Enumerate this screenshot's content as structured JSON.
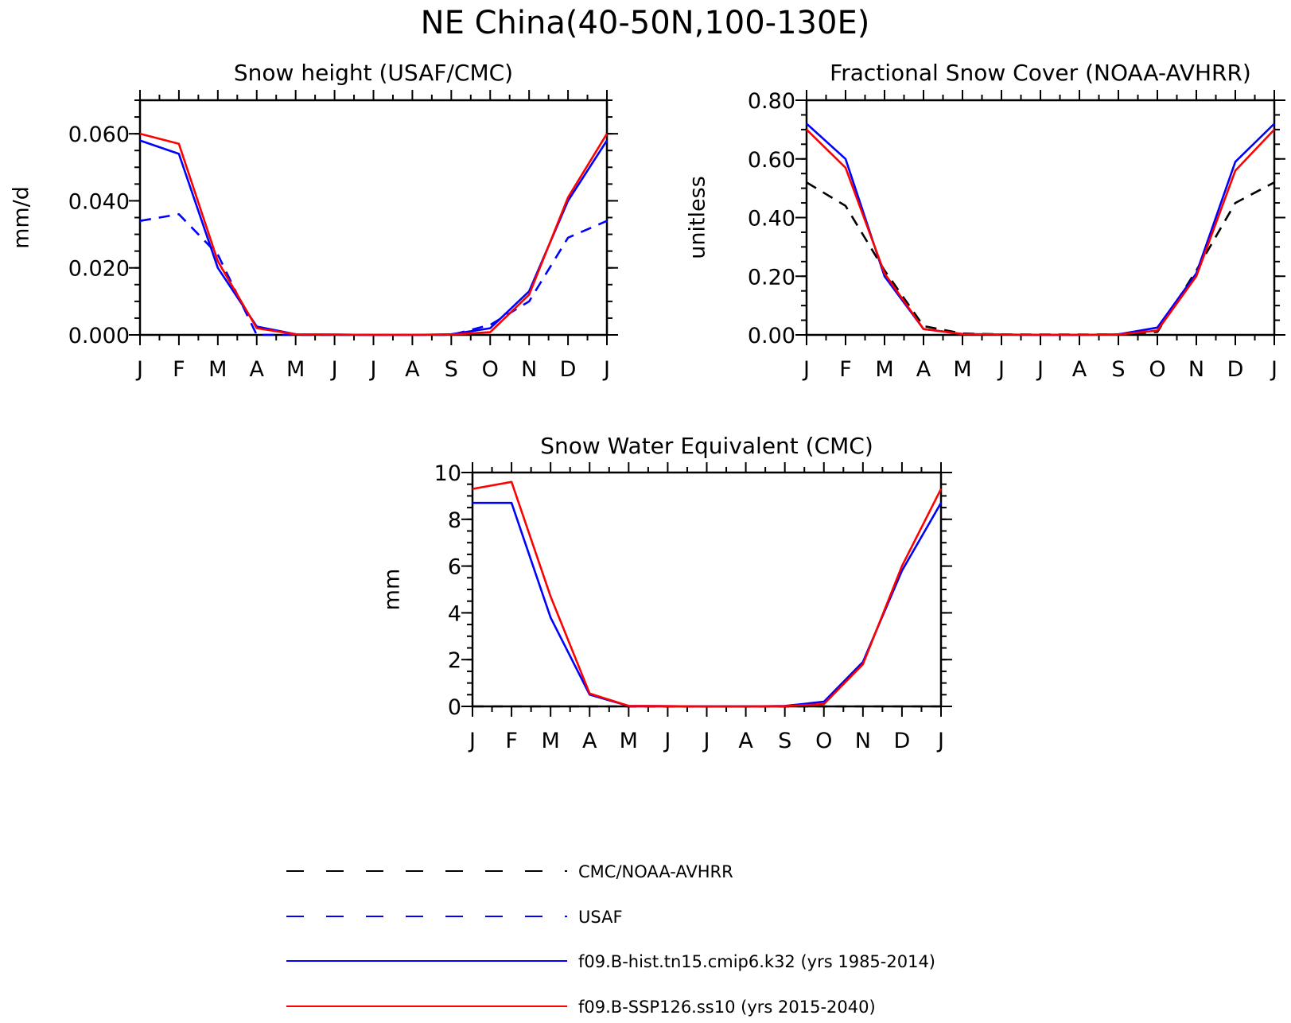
{
  "title": "NE China(40-50N,100-130E)",
  "legend": [
    {
      "label": "CMC/NOAA-AVHRR",
      "color": "#000000",
      "dash": true
    },
    {
      "label": "USAF",
      "color": "#0000ff",
      "dash": true
    },
    {
      "label": "f09.B-hist.tn15.cmip6.k32 (yrs 1985-2014)",
      "color": "#0000ff",
      "dash": false
    },
    {
      "label": "f09.B-SSP126.ss10 (yrs 2015-2040)",
      "color": "#ff0000",
      "dash": false
    }
  ],
  "chart_data": [
    {
      "type": "line",
      "title": "Snow height (USAF/CMC)",
      "xlabel": "",
      "ylabel": "mm/d",
      "categories": [
        "J",
        "F",
        "M",
        "A",
        "M",
        "J",
        "J",
        "A",
        "S",
        "O",
        "N",
        "D",
        "J"
      ],
      "ylim": [
        0,
        0.07
      ],
      "yticks": [
        0.0,
        0.02,
        0.04,
        0.06
      ],
      "ytick_labels": [
        "0.000",
        "0.020",
        "0.040",
        "0.060"
      ],
      "series": [
        {
          "name": "USAF",
          "color": "#0000ff",
          "dash": true,
          "values": [
            0.034,
            0.036,
            0.024,
            0.0,
            0.0,
            0.0,
            0.0,
            0.0,
            0.0,
            0.003,
            0.01,
            0.029,
            0.034
          ]
        },
        {
          "name": "f09.B-hist.tn15.cmip6.k32 (yrs 1985-2014)",
          "color": "#0000ff",
          "dash": false,
          "values": [
            0.058,
            0.054,
            0.02,
            0.0025,
            0.0002,
            0.0001,
            0.0,
            0.0,
            0.0002,
            0.002,
            0.013,
            0.04,
            0.058
          ]
        },
        {
          "name": "f09.B-SSP126.ss10 (yrs 2015-2040)",
          "color": "#ff0000",
          "dash": false,
          "values": [
            0.06,
            0.057,
            0.022,
            0.002,
            0.0002,
            0.0001,
            0.0,
            0.0,
            0.0001,
            0.0008,
            0.012,
            0.041,
            0.06
          ]
        }
      ]
    },
    {
      "type": "line",
      "title": "Fractional Snow Cover (NOAA-AVHRR)",
      "xlabel": "",
      "ylabel": "unitless",
      "categories": [
        "J",
        "F",
        "M",
        "A",
        "M",
        "J",
        "J",
        "A",
        "S",
        "O",
        "N",
        "D",
        "J"
      ],
      "ylim": [
        0,
        0.8
      ],
      "yticks": [
        0.0,
        0.2,
        0.4,
        0.6,
        0.8
      ],
      "ytick_labels": [
        "0.00",
        "0.20",
        "0.40",
        "0.60",
        "0.80"
      ],
      "series": [
        {
          "name": "CMC/NOAA-AVHRR",
          "color": "#000000",
          "dash": true,
          "values": [
            0.52,
            0.44,
            0.22,
            0.03,
            0.005,
            0.002,
            0.001,
            0.001,
            0.002,
            0.01,
            0.22,
            0.45,
            0.52
          ]
        },
        {
          "name": "f09.B-hist.tn15.cmip6.k32 (yrs 1985-2014)",
          "color": "#0000ff",
          "dash": false,
          "values": [
            0.72,
            0.6,
            0.2,
            0.02,
            0.003,
            0.001,
            0.0,
            0.0,
            0.002,
            0.025,
            0.21,
            0.59,
            0.72
          ]
        },
        {
          "name": "f09.B-SSP126.ss10 (yrs 2015-2040)",
          "color": "#ff0000",
          "dash": false,
          "values": [
            0.7,
            0.57,
            0.21,
            0.02,
            0.003,
            0.001,
            0.0,
            0.0,
            0.001,
            0.015,
            0.2,
            0.56,
            0.7
          ]
        }
      ]
    },
    {
      "type": "line",
      "title": "Snow Water Equivalent (CMC)",
      "xlabel": "",
      "ylabel": "mm",
      "categories": [
        "J",
        "F",
        "M",
        "A",
        "M",
        "J",
        "J",
        "A",
        "S",
        "O",
        "N",
        "D",
        "J"
      ],
      "ylim": [
        0,
        10
      ],
      "yticks": [
        0,
        2,
        4,
        6,
        8,
        10
      ],
      "ytick_labels": [
        "0",
        "2",
        "4",
        "6",
        "8",
        "10"
      ],
      "series": [
        {
          "name": "CMC/NOAA-AVHRR",
          "color": "#000000",
          "dash": true,
          "values": [
            0,
            0,
            0,
            0,
            0,
            0,
            0,
            0,
            0,
            0,
            0,
            0,
            0
          ]
        },
        {
          "name": "f09.B-hist.tn15.cmip6.k32 (yrs 1985-2014)",
          "color": "#0000ff",
          "dash": false,
          "values": [
            8.7,
            8.7,
            3.8,
            0.5,
            0.02,
            0.01,
            0.0,
            0.0,
            0.02,
            0.2,
            1.9,
            5.8,
            8.7
          ]
        },
        {
          "name": "f09.B-SSP126.ss10 (yrs 2015-2040)",
          "color": "#ff0000",
          "dash": false,
          "values": [
            9.3,
            9.6,
            4.7,
            0.55,
            0.02,
            0.01,
            0.0,
            0.0,
            0.01,
            0.1,
            1.8,
            6.0,
            9.3
          ]
        }
      ]
    }
  ]
}
